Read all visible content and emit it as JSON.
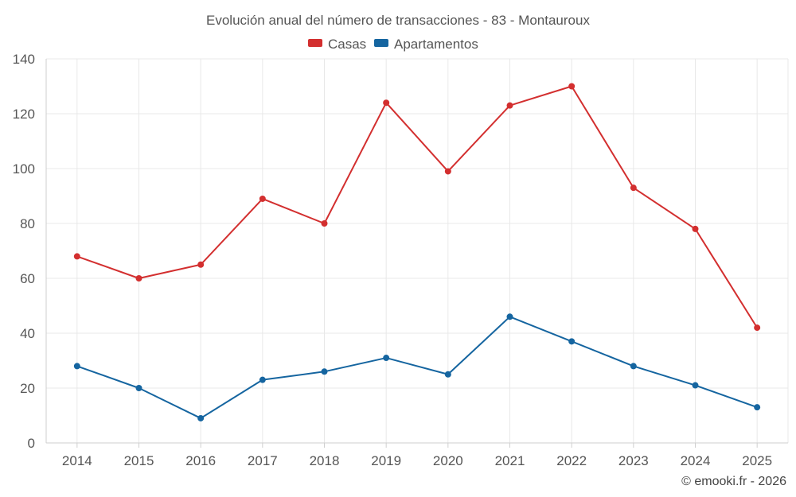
{
  "chart_data": {
    "type": "line",
    "title": "Evolución anual del número de transacciones - 83 - Montauroux",
    "xlabel": "",
    "ylabel": "",
    "categories": [
      "2014",
      "2015",
      "2016",
      "2017",
      "2018",
      "2019",
      "2020",
      "2021",
      "2022",
      "2023",
      "2024",
      "2025"
    ],
    "series": [
      {
        "name": "Casas",
        "color": "#d32f2f",
        "values": [
          68,
          60,
          65,
          89,
          80,
          124,
          99,
          123,
          130,
          93,
          78,
          42
        ]
      },
      {
        "name": "Apartamentos",
        "color": "#1565a0",
        "values": [
          28,
          20,
          9,
          23,
          26,
          31,
          25,
          46,
          37,
          28,
          21,
          13
        ]
      }
    ],
    "ylim": [
      0,
      140
    ],
    "yticks": [
      0,
      20,
      40,
      60,
      80,
      100,
      120,
      140
    ],
    "grid": true,
    "legend": "top-center"
  },
  "credit": "© emooki.fr - 2026"
}
